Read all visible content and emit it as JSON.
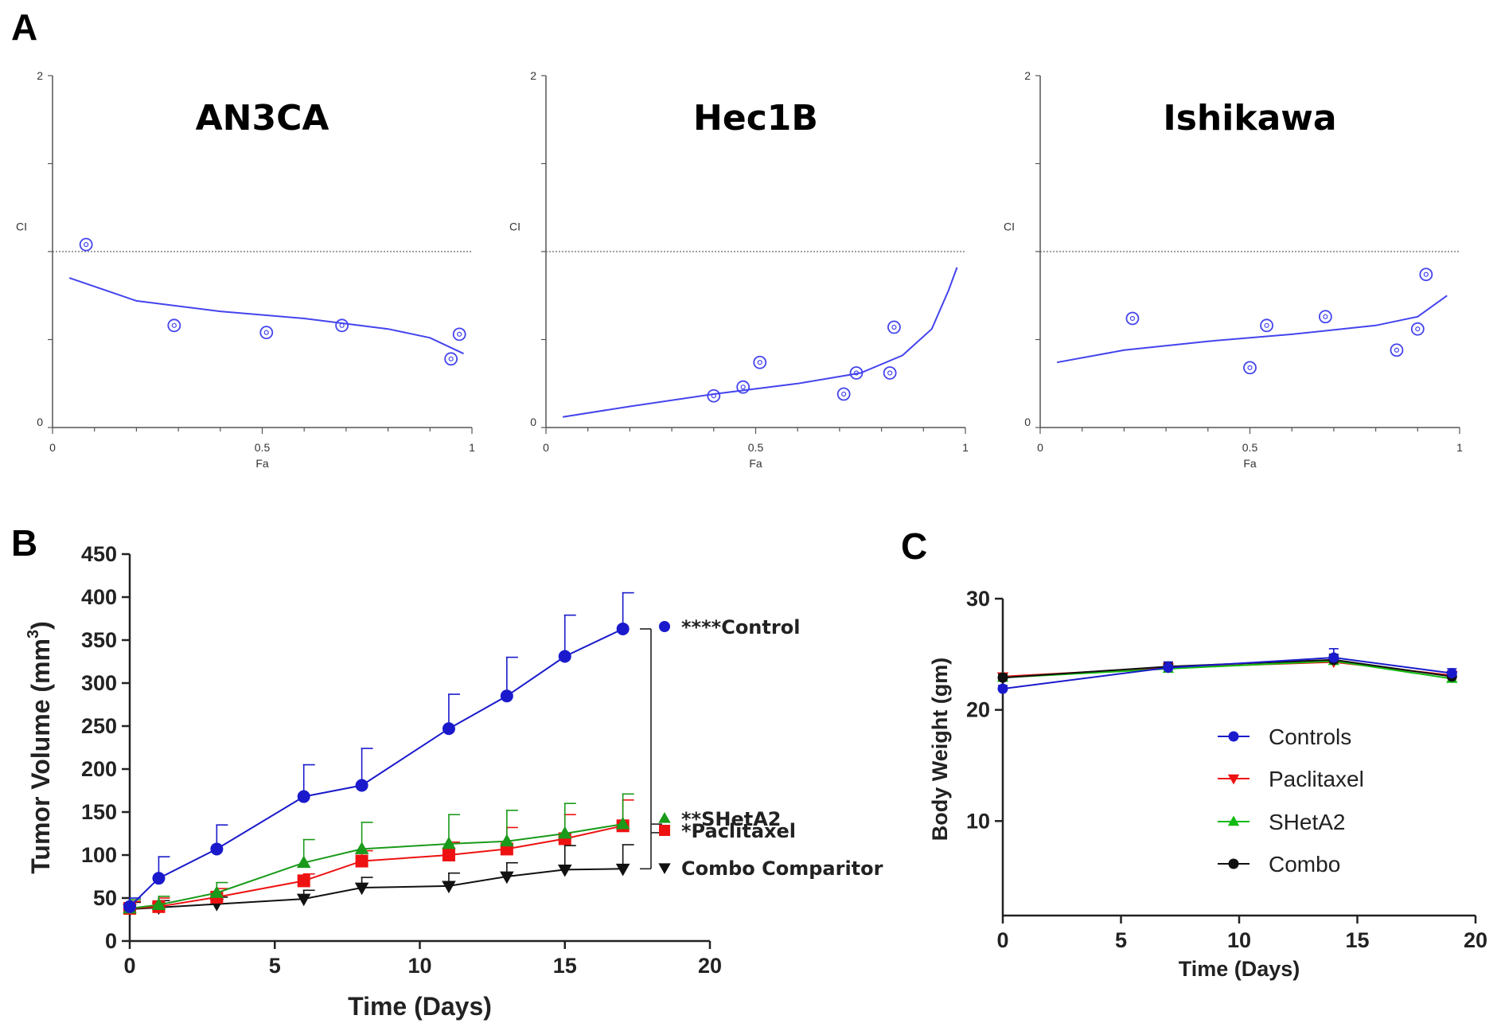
{
  "panel_labels": {
    "a": "A",
    "b": "B",
    "c": "C"
  },
  "chart_data": [
    {
      "type": "scatter",
      "panel": "A",
      "title": "AN3CA",
      "xlabel": "Fa",
      "ylabel": "CI",
      "xlim": [
        0,
        1
      ],
      "ylim": [
        0,
        2
      ],
      "xticks": [
        "0",
        "0.5",
        "1"
      ],
      "yticks": [
        "0",
        "2"
      ],
      "reference_line": 1,
      "color": "#4444ee",
      "points": [
        [
          0.08,
          1.04
        ],
        [
          0.29,
          0.58
        ],
        [
          0.51,
          0.54
        ],
        [
          0.69,
          0.58
        ],
        [
          0.95,
          0.39
        ],
        [
          0.97,
          0.53
        ]
      ],
      "fit": [
        [
          0.04,
          0.85
        ],
        [
          0.2,
          0.72
        ],
        [
          0.4,
          0.66
        ],
        [
          0.6,
          0.62
        ],
        [
          0.8,
          0.56
        ],
        [
          0.9,
          0.51
        ],
        [
          0.98,
          0.42
        ]
      ]
    },
    {
      "type": "scatter",
      "panel": "A",
      "title": "Hec1B",
      "xlabel": "Fa",
      "ylabel": "CI",
      "xlim": [
        0,
        1
      ],
      "ylim": [
        0,
        2
      ],
      "xticks": [
        "0",
        "0.5",
        "1"
      ],
      "yticks": [
        "0",
        "2"
      ],
      "reference_line": 1,
      "color": "#4444ee",
      "points": [
        [
          0.4,
          0.18
        ],
        [
          0.47,
          0.23
        ],
        [
          0.51,
          0.37
        ],
        [
          0.71,
          0.19
        ],
        [
          0.74,
          0.31
        ],
        [
          0.82,
          0.31
        ],
        [
          0.83,
          0.57
        ]
      ],
      "fit": [
        [
          0.04,
          0.06
        ],
        [
          0.2,
          0.12
        ],
        [
          0.4,
          0.19
        ],
        [
          0.6,
          0.25
        ],
        [
          0.75,
          0.31
        ],
        [
          0.85,
          0.41
        ],
        [
          0.92,
          0.56
        ],
        [
          0.96,
          0.78
        ],
        [
          0.98,
          0.91
        ]
      ]
    },
    {
      "type": "scatter",
      "panel": "A",
      "title": "Ishikawa",
      "xlabel": "Fa",
      "ylabel": "CI",
      "xlim": [
        0,
        1
      ],
      "ylim": [
        0,
        2
      ],
      "xticks": [
        "0",
        "0.5",
        "1"
      ],
      "yticks": [
        "0",
        "2"
      ],
      "reference_line": 1,
      "color": "#4444ee",
      "points": [
        [
          0.22,
          0.62
        ],
        [
          0.5,
          0.34
        ],
        [
          0.54,
          0.58
        ],
        [
          0.68,
          0.63
        ],
        [
          0.85,
          0.44
        ],
        [
          0.9,
          0.56
        ],
        [
          0.92,
          0.87
        ]
      ],
      "fit": [
        [
          0.04,
          0.37
        ],
        [
          0.2,
          0.44
        ],
        [
          0.4,
          0.49
        ],
        [
          0.6,
          0.53
        ],
        [
          0.8,
          0.58
        ],
        [
          0.9,
          0.63
        ],
        [
          0.97,
          0.75
        ]
      ]
    },
    {
      "type": "line",
      "panel": "B",
      "xlabel": "Time (Days)",
      "ylabel": "Tumor Volume (mm",
      "ylabel_sup": "3",
      "ylabel_end": ")",
      "xlim": [
        0,
        20
      ],
      "ylim": [
        0,
        450
      ],
      "xticks": [
        0,
        5,
        10,
        15,
        20
      ],
      "yticks": [
        0,
        50,
        100,
        150,
        200,
        250,
        300,
        350,
        400,
        450
      ],
      "x": [
        0,
        1,
        3,
        6,
        8,
        11,
        13,
        15,
        17
      ],
      "series": [
        {
          "name": "****Control",
          "color": "#1a1acc",
          "marker": "circle",
          "values": [
            40,
            73,
            107,
            168,
            181,
            247,
            285,
            331,
            363
          ],
          "errors": [
            10,
            25,
            28,
            37,
            43,
            40,
            45,
            48,
            42
          ]
        },
        {
          "name": "**SHetA2",
          "color": "#1a9a1a",
          "marker": "triangle-up",
          "values": [
            38,
            42,
            56,
            91,
            107,
            113,
            116,
            125,
            136
          ],
          "errors": [
            10,
            10,
            12,
            27,
            31,
            34,
            36,
            35,
            35
          ]
        },
        {
          "name": "*Paclitaxel",
          "color": "#ee1111",
          "marker": "square",
          "values": [
            38,
            40,
            51,
            70,
            93,
            100,
            107,
            119,
            134
          ],
          "errors": [
            8,
            10,
            10,
            8,
            12,
            15,
            25,
            28,
            30
          ]
        },
        {
          "name": "Combo Comparitor",
          "color": "#111111",
          "marker": "triangle-down",
          "values": [
            37,
            39,
            43,
            49,
            62,
            64,
            75,
            83,
            84
          ],
          "errors": [
            8,
            8,
            8,
            10,
            12,
            15,
            16,
            28,
            28
          ]
        }
      ]
    },
    {
      "type": "line",
      "panel": "C",
      "xlabel": "Time (Days)",
      "ylabel": "Body Weight (gm)",
      "xlim": [
        0,
        20
      ],
      "ylim": [
        1.5,
        30
      ],
      "xticks": [
        0,
        5,
        10,
        15,
        20
      ],
      "yticks": [
        10,
        20,
        30
      ],
      "x": [
        0,
        7,
        14,
        19
      ],
      "series": [
        {
          "name": "Controls",
          "color": "#1a1acc",
          "marker": "circle",
          "values": [
            21.9,
            23.8,
            24.7,
            23.3
          ],
          "errors": [
            0.3,
            0.5,
            0.8,
            0.4
          ]
        },
        {
          "name": "Paclitaxel",
          "color": "#ee1111",
          "marker": "triangle-down",
          "values": [
            23.0,
            23.8,
            24.3,
            23.1
          ],
          "errors": [
            0.3,
            0.4,
            0.5,
            0.4
          ]
        },
        {
          "name": "SHetA2",
          "color": "#11bb11",
          "marker": "triangle-up",
          "values": [
            22.9,
            23.7,
            24.4,
            22.8
          ],
          "errors": [
            0.3,
            0.4,
            0.5,
            0.4
          ]
        },
        {
          "name": "Combo",
          "color": "#111111",
          "marker": "circle",
          "values": [
            22.9,
            23.9,
            24.5,
            23.0
          ],
          "errors": [
            0.3,
            0.4,
            0.5,
            0.4
          ]
        }
      ]
    }
  ]
}
